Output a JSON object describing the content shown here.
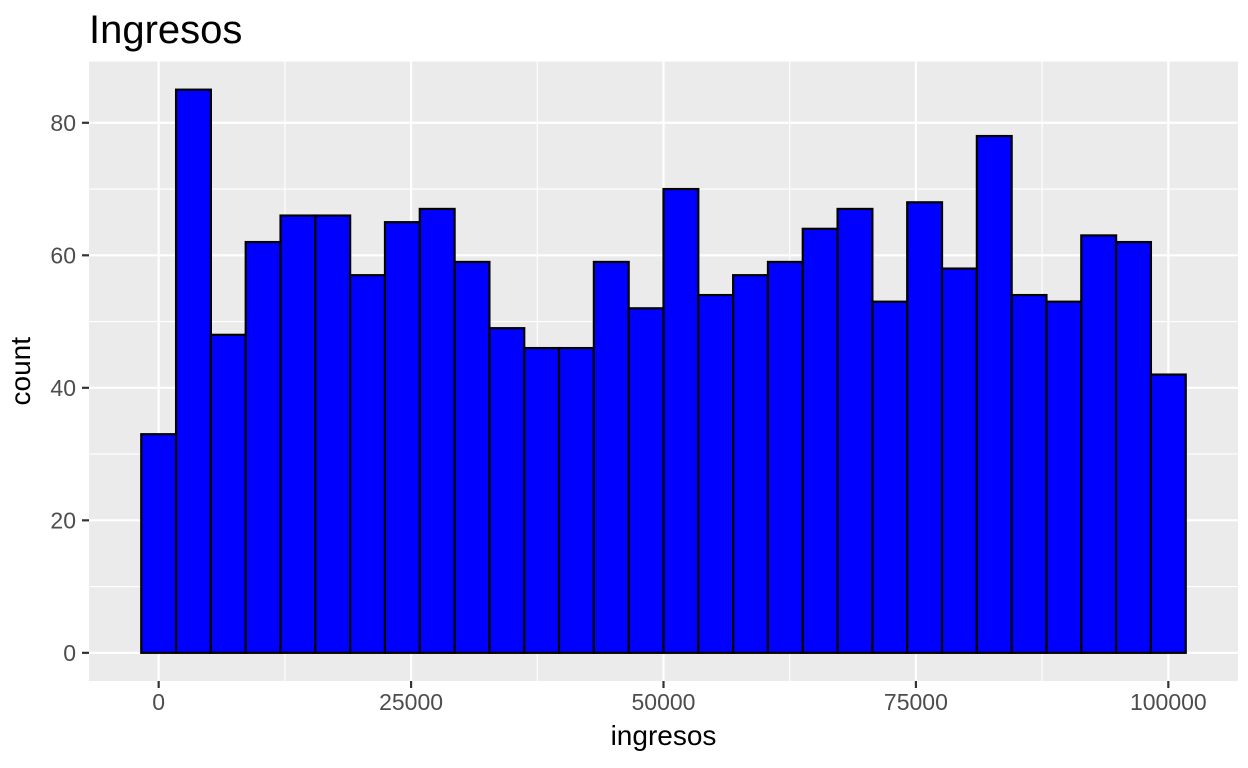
{
  "chart_data": {
    "type": "bar",
    "chart_kind": "histogram",
    "title": "Ingresos",
    "xlabel": "ingresos",
    "ylabel": "count",
    "legend": null,
    "grid": true,
    "n_bins": 30,
    "bin_width": 3448.2759,
    "bin_centers": [
      0,
      3448,
      6897,
      10345,
      13793,
      17241,
      20690,
      24138,
      27586,
      31034,
      34483,
      37931,
      41379,
      44828,
      48276,
      51724,
      55172,
      58621,
      62069,
      65517,
      68966,
      72414,
      75862,
      79310,
      82759,
      86207,
      89655,
      93103,
      96552,
      100000
    ],
    "counts": [
      33,
      85,
      48,
      62,
      66,
      66,
      57,
      65,
      67,
      59,
      49,
      46,
      46,
      59,
      52,
      70,
      54,
      57,
      59,
      64,
      67,
      53,
      68,
      58,
      78,
      54,
      53,
      63,
      62,
      42
    ],
    "x_ticks": [
      0,
      25000,
      50000,
      75000,
      100000
    ],
    "x_tick_labels": [
      "0",
      "25000",
      "50000",
      "75000",
      "100000"
    ],
    "y_ticks": [
      0,
      20,
      40,
      60,
      80
    ],
    "y_tick_labels": [
      "0",
      "20",
      "40",
      "60",
      "80"
    ],
    "xlim": [
      -6900,
      106900
    ],
    "ylim": [
      -4.25,
      89.25
    ],
    "colors": {
      "bar_fill": "#0000FF",
      "bar_stroke": "#000000",
      "panel_bg": "#EBEBEB",
      "grid_major": "#FFFFFF",
      "grid_minor": "#FFFFFF",
      "tick_mark": "#333333",
      "tick_label": "#4D4D4D",
      "axis_title": "#000000",
      "title": "#000000"
    }
  }
}
